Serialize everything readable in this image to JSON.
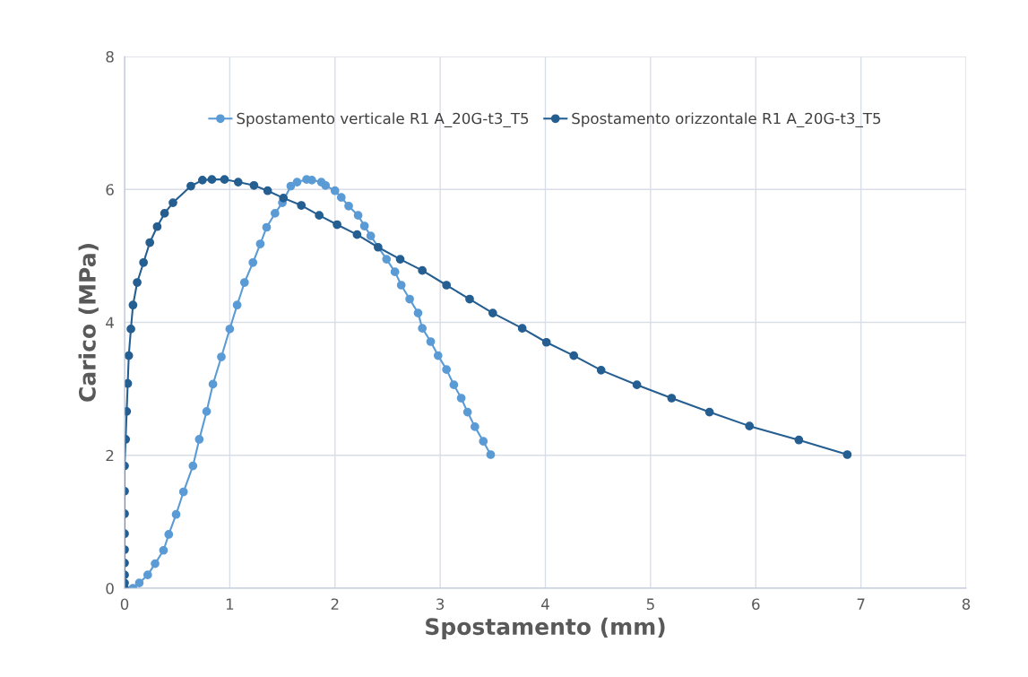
{
  "chart_data": {
    "type": "line",
    "xlabel": "Spostamento (mm)",
    "ylabel": "Carico (MPa)",
    "xlim": [
      0,
      8
    ],
    "xticks": [
      0,
      1,
      2,
      3,
      4,
      5,
      6,
      7,
      8
    ],
    "ylim": [
      0,
      8
    ],
    "yticks": [
      0,
      2,
      4,
      6,
      8
    ],
    "grid": true,
    "legend": "top",
    "marker": "circle",
    "line_style": "solid",
    "series": [
      {
        "name": "Spostamento verticale R1 A_20G-t3_T5",
        "color": "#5b9bd5",
        "x": [
          0.08,
          0.14,
          0.22,
          0.29,
          0.37,
          0.42,
          0.49,
          0.56,
          0.65,
          0.71,
          0.78,
          0.84,
          0.92,
          1.0,
          1.07,
          1.14,
          1.22,
          1.29,
          1.35,
          1.43,
          1.5,
          1.58,
          1.64,
          1.73,
          1.78,
          1.87,
          1.91,
          2.0,
          2.06,
          2.13,
          2.22,
          2.28,
          2.34,
          2.49,
          2.57,
          2.63,
          2.71,
          2.79,
          2.83,
          2.91,
          2.98,
          3.06,
          3.13,
          3.2,
          3.26,
          3.33,
          3.41,
          3.48
        ],
        "values": [
          0,
          0.08,
          0.2,
          0.37,
          0.57,
          0.81,
          1.11,
          1.45,
          1.84,
          2.24,
          2.66,
          3.07,
          3.48,
          3.9,
          4.26,
          4.6,
          4.9,
          5.18,
          5.43,
          5.64,
          5.8,
          6.05,
          6.11,
          6.15,
          6.14,
          6.11,
          6.06,
          5.98,
          5.88,
          5.75,
          5.61,
          5.45,
          5.3,
          4.95,
          4.76,
          4.56,
          4.35,
          4.14,
          3.91,
          3.71,
          3.5,
          3.29,
          3.06,
          2.86,
          2.65,
          2.43,
          2.21,
          2.01
        ]
      },
      {
        "name": "Spostamento orizzontale R1 A_20G-t3_T5",
        "color": "#255e91",
        "x": [
          0,
          0,
          0,
          0,
          0,
          0,
          0,
          0,
          0,
          0.01,
          0.02,
          0.03,
          0.04,
          0.06,
          0.08,
          0.12,
          0.18,
          0.24,
          0.31,
          0.38,
          0.46,
          0.63,
          0.74,
          0.83,
          0.95,
          1.08,
          1.23,
          1.36,
          1.51,
          1.68,
          1.85,
          2.02,
          2.21,
          2.41,
          2.62,
          2.83,
          3.06,
          3.28,
          3.5,
          3.78,
          4.01,
          4.27,
          4.53,
          4.87,
          5.2,
          5.56,
          5.94,
          6.41,
          6.87
        ],
        "values": [
          0,
          0.08,
          0.2,
          0.38,
          0.58,
          0.82,
          1.12,
          1.46,
          1.84,
          2.24,
          2.66,
          3.08,
          3.5,
          3.9,
          4.26,
          4.6,
          4.9,
          5.2,
          5.44,
          5.64,
          5.8,
          6.05,
          6.14,
          6.15,
          6.15,
          6.11,
          6.06,
          5.98,
          5.87,
          5.76,
          5.61,
          5.47,
          5.32,
          5.13,
          4.95,
          4.78,
          4.56,
          4.35,
          4.14,
          3.91,
          3.7,
          3.5,
          3.28,
          3.06,
          2.86,
          2.65,
          2.44,
          2.23,
          2.01
        ]
      }
    ]
  }
}
